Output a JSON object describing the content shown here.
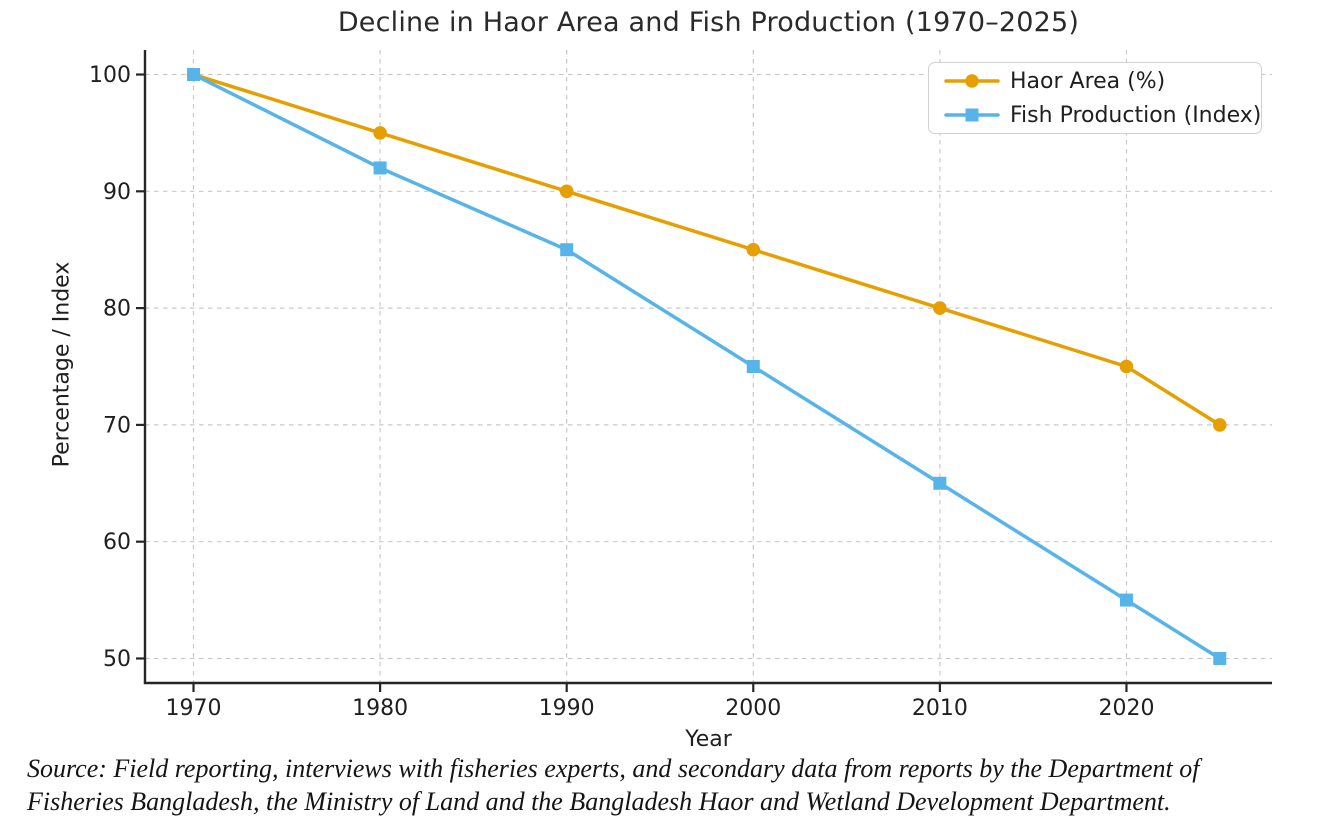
{
  "chart_data": {
    "type": "line",
    "title": "Decline in Haor Area and Fish Production (1970–2025)",
    "xlabel": "Year",
    "ylabel": "Percentage / Index",
    "x": [
      1970,
      1980,
      1990,
      2000,
      2010,
      2020,
      2025
    ],
    "series": [
      {
        "name": "Haor Area (%)",
        "color": "#E69F00",
        "marker": "circle",
        "values": [
          100,
          95,
          90,
          85,
          80,
          75,
          70
        ]
      },
      {
        "name": "Fish Production (Index)",
        "color": "#56B4E9",
        "marker": "square",
        "values": [
          100,
          92,
          85,
          75,
          65,
          55,
          50
        ]
      }
    ],
    "xticks": [
      1970,
      1980,
      1990,
      2000,
      2010,
      2020
    ],
    "yticks": [
      50,
      60,
      70,
      80,
      90,
      100
    ],
    "xlim": [
      1967.4,
      2027.8
    ],
    "ylim": [
      47.9,
      102.1
    ],
    "grid": true,
    "grid_style": "dashed",
    "legend_position": "upper-right"
  },
  "source_note": {
    "lines": [
      "Source: Field reporting, interviews with fisheries experts, and secondary data from reports by the Department of",
      "Fisheries Bangladesh, the Ministry of Land and the Bangladesh Haor and Wetland Development Department."
    ]
  },
  "colors": {
    "haor_area_line": "#E69F00",
    "fish_production_line": "#56B4E9",
    "gridline": "#c9c9c9",
    "spine": "#262626",
    "tick_text": "#1f1f1f",
    "legend_border": "#d0d0d0",
    "background": "#ffffff"
  }
}
